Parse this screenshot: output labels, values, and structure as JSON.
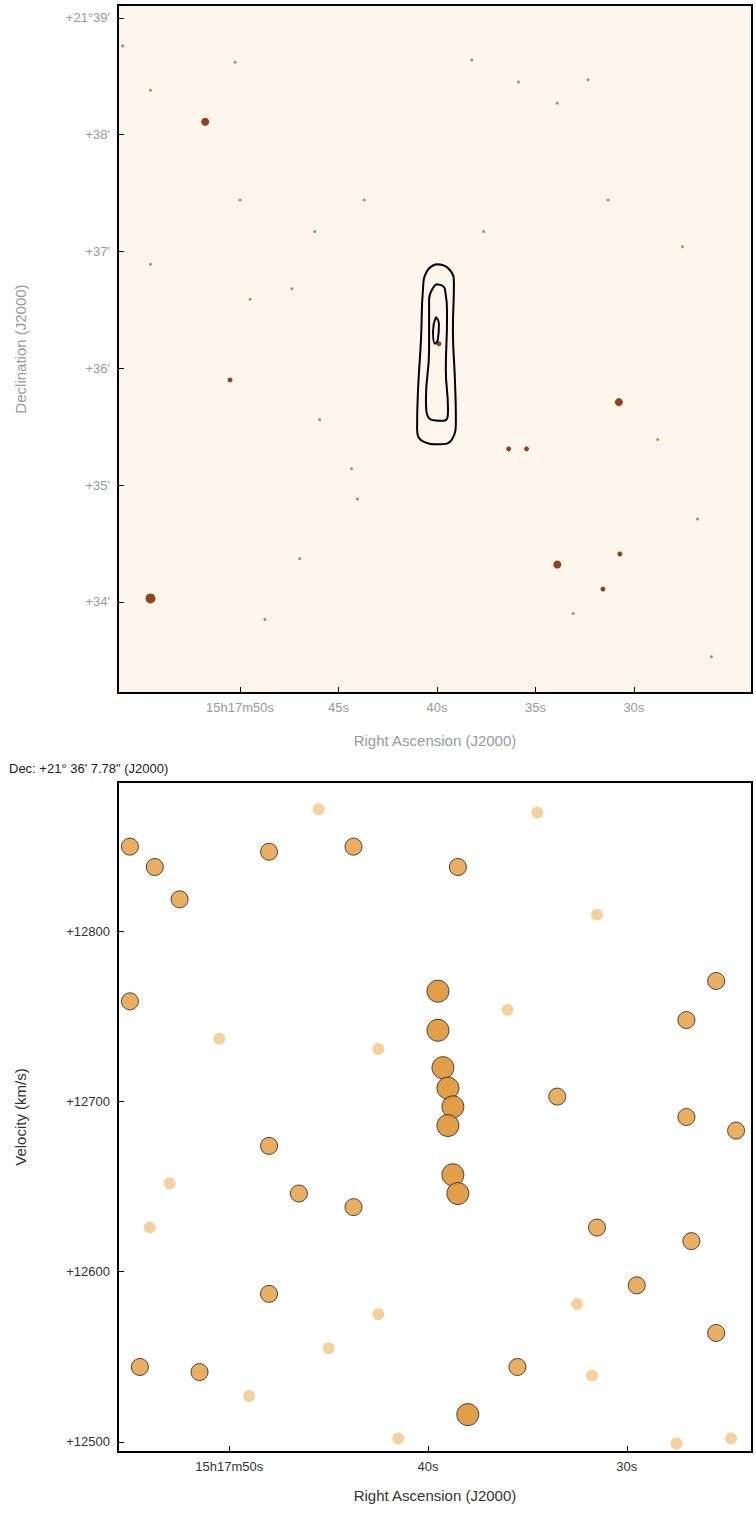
{
  "chart_data": [
    {
      "type": "scatter",
      "xlabel": "Right Ascension (J2000)",
      "ylabel": "Declination (J2000)",
      "color": "#8a3a10",
      "xlim": [
        56.2,
        24.0
      ],
      "ylim": [
        33.22,
        39.11
      ],
      "xticks": [
        {
          "value": 50,
          "label": "15h17m50s"
        },
        {
          "value": 45,
          "label": "45s"
        },
        {
          "value": 40,
          "label": "40s"
        },
        {
          "value": 35,
          "label": "35s"
        },
        {
          "value": 30,
          "label": "30s"
        }
      ],
      "yticks": [
        {
          "value": 34,
          "label": "+34′"
        },
        {
          "value": 35,
          "label": "+35′"
        },
        {
          "value": 36,
          "label": "+36′"
        },
        {
          "value": 37,
          "label": "+37′"
        },
        {
          "value": 38,
          "label": "+38′"
        },
        {
          "value": 39,
          "label": "+21°39′"
        }
      ],
      "stars": {
        "ra": [
          51.77,
          54.55,
          33.89,
          30.76,
          50.51,
          36.36,
          35.45,
          39.9,
          30.71,
          31.57,
          55.96,
          54.55,
          50.25,
          50.0,
          46.21,
          47.37,
          44.34,
          44.04,
          43.69,
          37.63,
          35.86,
          33.89,
          32.32,
          31.31,
          27.53,
          26.77,
          26.06,
          48.74,
          33.08,
          46.97,
          45.96,
          54.55,
          49.49,
          28.79,
          38.23
        ],
        "dec": [
          38.11,
          34.03,
          34.32,
          35.71,
          35.9,
          35.31,
          35.31,
          36.21,
          34.41,
          34.11,
          38.76,
          38.38,
          38.62,
          37.44,
          37.17,
          36.68,
          35.14,
          34.88,
          37.44,
          37.17,
          38.45,
          38.27,
          38.47,
          37.44,
          37.04,
          34.71,
          33.53,
          33.85,
          33.9,
          34.37,
          35.56,
          36.89,
          36.59,
          35.39,
          38.64
        ],
        "size": [
          3,
          4,
          3,
          3,
          2,
          2,
          2,
          2,
          2,
          2,
          1,
          1,
          1,
          1,
          1,
          1,
          1,
          1,
          1,
          1,
          1,
          1,
          1,
          1,
          1,
          1,
          1,
          1,
          1,
          1,
          1,
          1,
          1,
          1,
          1
        ]
      },
      "contours": [
        {
          "ra": [
            40.05,
            39.39,
            39.14,
            39.19,
            39.09,
            39.04,
            39.24,
            39.9,
            40.66,
            41.01,
            40.96,
            40.81,
            40.71,
            40.51,
            40.05
          ],
          "dec": [
            36.89,
            36.85,
            36.72,
            36.33,
            35.91,
            35.56,
            35.39,
            35.35,
            35.37,
            35.48,
            35.82,
            36.25,
            36.68,
            36.83,
            36.89
          ]
        },
        {
          "ra": [
            40.05,
            39.6,
            39.49,
            39.55,
            39.44,
            39.65,
            40.3,
            40.56,
            40.4,
            40.4,
            40.05
          ],
          "dec": [
            36.72,
            36.68,
            36.42,
            35.99,
            35.65,
            35.55,
            35.56,
            35.74,
            36.16,
            36.59,
            36.72
          ]
        },
        {
          "ra": [
            40.05,
            39.9,
            39.95,
            40.1,
            40.2,
            40.05
          ],
          "dec": [
            36.44,
            36.38,
            36.25,
            36.21,
            36.32,
            36.44
          ]
        }
      ]
    },
    {
      "type": "scatter",
      "title": "Dec: +21° 36' 7.78\" (J2000)",
      "xlabel": "Right Ascension (J2000)",
      "ylabel": "Velocity (km/s)",
      "color": "#e09434",
      "xlim": [
        55.6,
        23.7
      ],
      "ylim": [
        12494,
        12888
      ],
      "xticks": [
        {
          "value": 50,
          "label": "15h17m50s"
        },
        {
          "value": 40,
          "label": "40s"
        },
        {
          "value": 30,
          "label": "30s"
        }
      ],
      "yticks": [
        {
          "value": 12500,
          "label": "+12500"
        },
        {
          "value": 12600,
          "label": "+12600"
        },
        {
          "value": 12700,
          "label": "+12700"
        },
        {
          "value": 12800,
          "label": "+12800"
        }
      ],
      "emission": {
        "ra": [
          39.5,
          39.5,
          39.25,
          39.0,
          38.75,
          39.0,
          38.75,
          38.5,
          55.0,
          53.75,
          52.5,
          48.0,
          45.5,
          43.75,
          38.5,
          34.5,
          31.5,
          25.5,
          27.0,
          55.0,
          50.5,
          48.0,
          42.5,
          36.0,
          33.5,
          27.0,
          24.5,
          46.5,
          43.75,
          31.5,
          26.75,
          29.5,
          32.5,
          48.0,
          54.5,
          51.5,
          45.0,
          35.5,
          31.75,
          38.0,
          41.5,
          27.5,
          24.75,
          49.0,
          42.5,
          25.5,
          53.0,
          54.0
        ],
        "velocity": [
          12765,
          12742,
          12720,
          12708,
          12697,
          12686,
          12657,
          12646,
          12850,
          12838,
          12819,
          12847,
          12872,
          12850,
          12838,
          12870,
          12810,
          12771,
          12748,
          12759,
          12737,
          12674,
          12731,
          12754,
          12703,
          12691,
          12683,
          12646,
          12638,
          12626,
          12618,
          12592,
          12581,
          12587,
          12544,
          12541,
          12555,
          12544,
          12539,
          12516,
          12502,
          12499,
          12502,
          12527,
          12575,
          12564,
          12652,
          12626
        ],
        "strength": [
          3,
          3,
          3,
          3,
          3,
          3,
          3,
          3,
          2,
          2,
          2,
          2,
          1,
          2,
          2,
          1,
          1,
          2,
          2,
          2,
          1,
          2,
          1,
          1,
          2,
          2,
          2,
          2,
          2,
          2,
          2,
          2,
          1,
          2,
          2,
          2,
          1,
          2,
          1,
          3,
          1,
          1,
          1,
          1,
          1,
          2,
          1,
          1
        ]
      }
    }
  ]
}
